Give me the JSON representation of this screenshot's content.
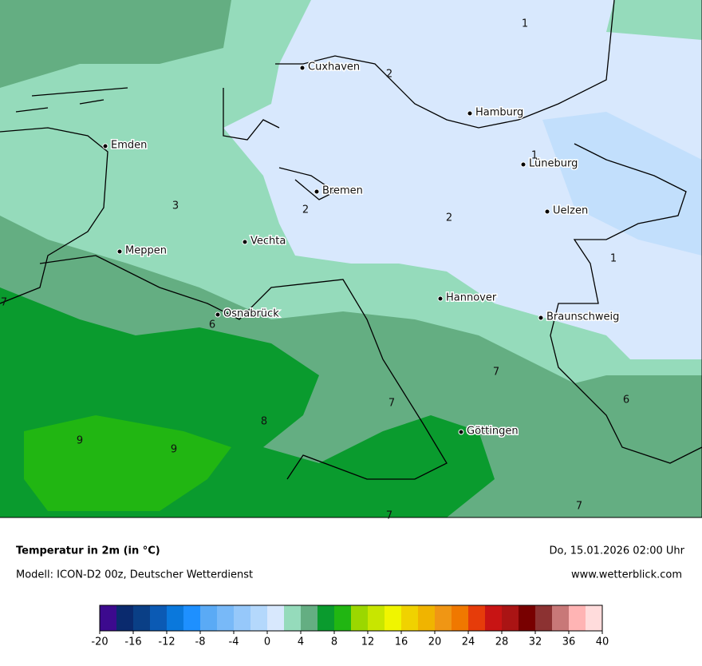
{
  "map": {
    "cities": [
      "Cuxhaven",
      "Hamburg",
      "Emden",
      "Lüneburg",
      "Bremen",
      "Uelzen",
      "Vechta",
      "Meppen",
      "Hannover",
      "Osnabrück",
      "Braunschweig",
      "Göttingen"
    ],
    "contour_labels": [
      "1",
      "2",
      "1",
      "3",
      "2",
      "2",
      "1",
      "7",
      "6",
      "7",
      "7",
      "6",
      "8",
      "9",
      "9",
      "7",
      "7"
    ]
  },
  "legend": {
    "title": "Temperatur in 2m (in °C)",
    "subtitle": "Modell: ICON-D2 00z, Deutscher Wetterdienst",
    "datetime": "Do, 15.01.2026 02:00 Uhr",
    "website": "www.wetterblick.com",
    "colorbar": {
      "ticks": [
        -20,
        -16,
        -12,
        -8,
        -4,
        0,
        4,
        8,
        12,
        16,
        20,
        24,
        28,
        32,
        36,
        40
      ],
      "colors": [
        "#3c0a8e",
        "#0a2a6e",
        "#0a3f86",
        "#0b5ab4",
        "#0a78dc",
        "#1e90ff",
        "#5aaaf5",
        "#78b9f8",
        "#96c8fa",
        "#b4d8fc",
        "#d8e8fd",
        "#95dbbb",
        "#64ae82",
        "#0a9b2e",
        "#21b612",
        "#9bd700",
        "#c8e600",
        "#f0f500",
        "#f0d200",
        "#f0b400",
        "#f09614",
        "#f07800",
        "#e63c0a",
        "#c81414",
        "#aa1414",
        "#780000",
        "#8c3232",
        "#c87878",
        "#ffb4b4",
        "#ffdcdc"
      ]
    }
  }
}
